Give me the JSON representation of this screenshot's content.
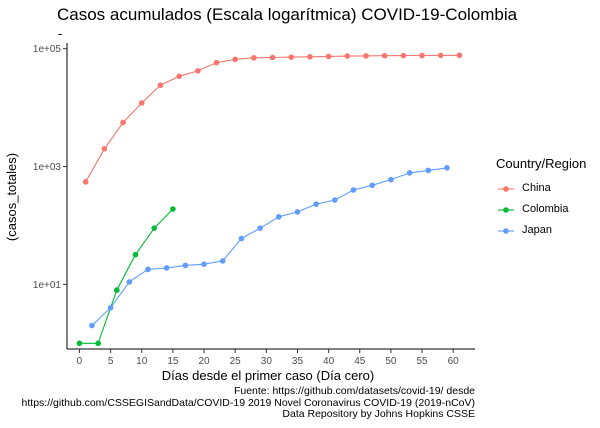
{
  "chart_data": {
    "type": "line",
    "title": "Casos acumulados (Escala logarítmica) COVID-19-Colombia",
    "subtitle": "-",
    "xlabel": "Días desde el primer caso (Día cero)",
    "ylabel": "(casos_totales)",
    "x_ticks": [
      0,
      5,
      10,
      15,
      20,
      25,
      30,
      35,
      40,
      45,
      50,
      55,
      60
    ],
    "y_ticks": [
      10,
      1000,
      100000
    ],
    "y_tick_labels": [
      "1e+01",
      "1e+03",
      "1e+05"
    ],
    "y_scale": "log10",
    "xlim": [
      -2,
      63.5
    ],
    "ylim": [
      0.8,
      125000
    ],
    "grid": false,
    "legend": {
      "title": "Country/Region",
      "position": "right"
    },
    "series": [
      {
        "name": "China",
        "color": "#F8766D",
        "x": [
          1,
          4,
          7,
          10,
          13,
          16,
          19,
          22,
          25,
          28,
          31,
          34,
          37,
          40,
          43,
          46,
          49,
          52,
          55,
          58,
          61
        ],
        "y": [
          550,
          2000,
          5600,
          12000,
          24000,
          34000,
          42000,
          58000,
          66000,
          70000,
          71000,
          72000,
          73000,
          74000,
          75000,
          75500,
          76000,
          76300,
          76600,
          76900,
          77200
        ]
      },
      {
        "name": "Colombia",
        "color": "#00BA38",
        "x": [
          0,
          3,
          6,
          9,
          12,
          15
        ],
        "y": [
          1,
          1,
          8,
          32,
          90,
          190
        ]
      },
      {
        "name": "Japan",
        "color": "#619CFF",
        "x": [
          2,
          5,
          8,
          11,
          14,
          17,
          20,
          23,
          26,
          29,
          32,
          35,
          38,
          41,
          44,
          47,
          50,
          53,
          56,
          59
        ],
        "y": [
          2,
          4,
          11,
          18,
          19,
          21,
          22,
          25,
          60,
          90,
          140,
          170,
          230,
          270,
          400,
          480,
          600,
          780,
          860,
          950
        ]
      }
    ]
  },
  "caption": {
    "line1": "Fuente: https://github.com/datasets/covid-19/  desde",
    "line2": "https://github.com/CSSEGISandData/COVID-19 2019 Novel Coronavirus COVID-19 (2019-nCoV)",
    "line3": "Data Repository by Johns Hopkins CSSE"
  }
}
